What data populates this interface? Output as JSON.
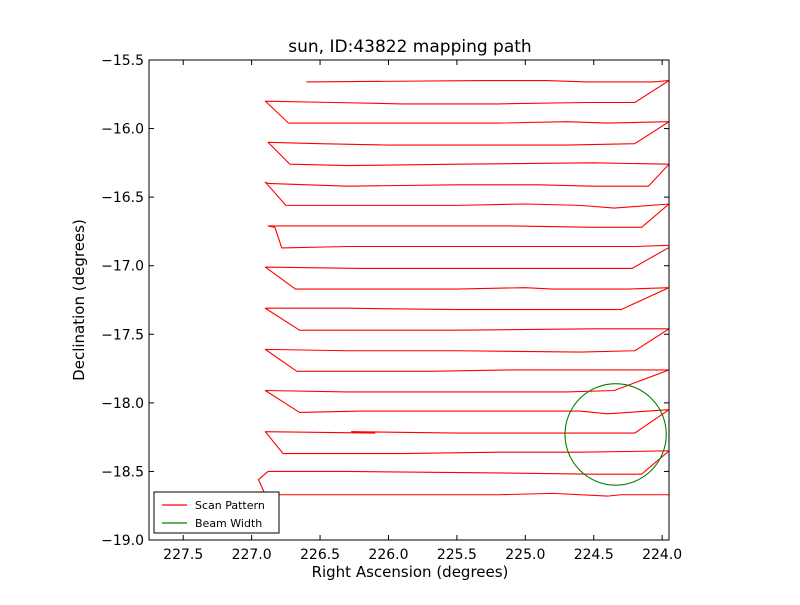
{
  "chart_data": {
    "type": "line",
    "title": "sun, ID:43822 mapping path",
    "xlabel": "Right Ascension (degrees)",
    "ylabel": "Declination (degrees)",
    "xlim": [
      227.75,
      223.95
    ],
    "ylim": [
      -19.0,
      -15.5
    ],
    "x_ticks": [
      227.5,
      227.0,
      226.5,
      226.0,
      225.5,
      225.0,
      224.5,
      224.0
    ],
    "x_tick_labels": [
      "227.5",
      "227.0",
      "226.5",
      "226.0",
      "225.5",
      "225.0",
      "224.5",
      "224.0"
    ],
    "y_ticks": [
      -15.5,
      -16.0,
      -16.5,
      -17.0,
      -17.5,
      -18.0,
      -18.5,
      -19.0
    ],
    "y_tick_labels": [
      "−15.5",
      "−16.0",
      "−16.5",
      "−17.0",
      "−17.5",
      "−18.0",
      "−18.5",
      "−19.0"
    ],
    "grid": false,
    "legend_position": "lower-left",
    "series": [
      {
        "name": "Scan Pattern",
        "color": "#ff0000",
        "kind": "line",
        "x": [
          226.6,
          225.3,
          224.85,
          224.55,
          224.25,
          224.07,
          223.95,
          224.2,
          224.55,
          225.2,
          225.9,
          226.4,
          226.9,
          226.73,
          226.1,
          225.2,
          224.7,
          224.4,
          223.95,
          224.2,
          224.7,
          225.3,
          226.0,
          226.5,
          226.88,
          226.72,
          226.3,
          225.5,
          224.5,
          223.95,
          224.1,
          224.5,
          224.9,
          225.5,
          226.3,
          226.88,
          226.9,
          226.75,
          226.0,
          225.5,
          225.0,
          224.6,
          224.35,
          223.95,
          224.15,
          224.5,
          225.1,
          225.9,
          226.88,
          226.83,
          226.78,
          226.3,
          225.3,
          224.7,
          224.2,
          223.92,
          224.22,
          224.65,
          225.3,
          226.2,
          226.9,
          226.68,
          226.0,
          225.5,
          225.0,
          224.8,
          224.4,
          224.25,
          223.95,
          224.3,
          224.8,
          225.5,
          226.3,
          226.9,
          226.65,
          226.0,
          225.5,
          224.5,
          223.95,
          224.2,
          224.6,
          225.5,
          226.3,
          226.9,
          226.67,
          225.7,
          225.1,
          224.5,
          223.95,
          224.35,
          224.7,
          224.9,
          225.6,
          226.3,
          226.9,
          226.65,
          226.2,
          225.2,
          224.6,
          224.4,
          223.95,
          224.2,
          224.7,
          225.5,
          226.27,
          226.1,
          226.9,
          226.77,
          225.9,
          225.2,
          224.6,
          223.95,
          224.15,
          224.5,
          225.3,
          226.3,
          226.88,
          226.95,
          226.9,
          226.3,
          225.9,
          225.2,
          224.8,
          224.4,
          224.3,
          223.95
        ],
        "y": [
          -15.66,
          -15.65,
          -15.65,
          -15.66,
          -15.66,
          -15.66,
          -15.65,
          -15.81,
          -15.81,
          -15.82,
          -15.82,
          -15.81,
          -15.8,
          -15.96,
          -15.96,
          -15.96,
          -15.95,
          -15.96,
          -15.95,
          -16.11,
          -16.12,
          -16.12,
          -16.12,
          -16.11,
          -16.1,
          -16.26,
          -16.27,
          -16.26,
          -16.25,
          -16.26,
          -16.42,
          -16.42,
          -16.41,
          -16.41,
          -16.42,
          -16.4,
          -16.39,
          -16.56,
          -16.56,
          -16.56,
          -16.55,
          -16.56,
          -16.58,
          -16.55,
          -16.72,
          -16.72,
          -16.71,
          -16.71,
          -16.71,
          -16.72,
          -16.87,
          -16.86,
          -16.86,
          -16.86,
          -16.86,
          -16.85,
          -17.02,
          -17.02,
          -17.02,
          -17.02,
          -17.01,
          -17.17,
          -17.17,
          -17.17,
          -17.16,
          -17.17,
          -17.17,
          -17.17,
          -17.16,
          -17.32,
          -17.32,
          -17.32,
          -17.31,
          -17.31,
          -17.47,
          -17.47,
          -17.47,
          -17.46,
          -17.46,
          -17.62,
          -17.63,
          -17.62,
          -17.62,
          -17.61,
          -17.77,
          -17.77,
          -17.76,
          -17.76,
          -17.76,
          -17.91,
          -17.92,
          -17.92,
          -17.92,
          -17.92,
          -17.91,
          -18.07,
          -18.06,
          -18.06,
          -18.06,
          -18.08,
          -18.05,
          -18.22,
          -18.22,
          -18.22,
          -18.21,
          -18.22,
          -18.21,
          -18.37,
          -18.37,
          -18.36,
          -18.36,
          -18.35,
          -18.52,
          -18.52,
          -18.51,
          -18.5,
          -18.5,
          -18.56,
          -18.67,
          -18.67,
          -18.67,
          -18.67,
          -18.66,
          -18.68,
          -18.67,
          -18.67
        ]
      },
      {
        "name": "Beam Width",
        "color": "#008000",
        "kind": "circle",
        "center": [
          224.34,
          -18.23
        ],
        "radius": 0.37
      }
    ]
  }
}
